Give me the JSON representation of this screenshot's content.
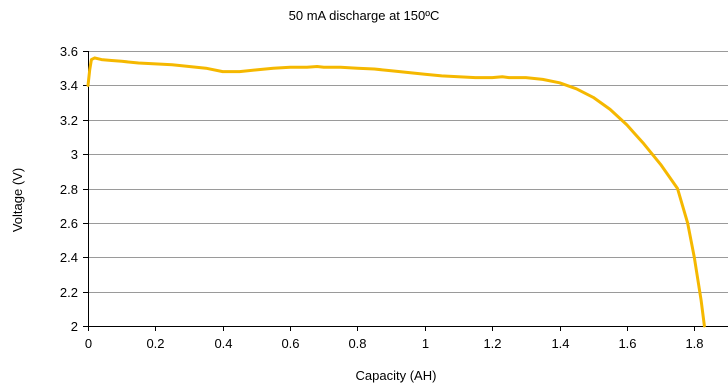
{
  "chart_data": {
    "type": "line",
    "title": "50 mA discharge at 150ºC",
    "xlabel": "Capacity (AH)",
    "ylabel": "Voltage (V)",
    "xlim": [
      0,
      1.9
    ],
    "ylim": [
      2,
      3.6
    ],
    "x_ticks": [
      0,
      0.2,
      0.4,
      0.6,
      0.8,
      1,
      1.2,
      1.4,
      1.6,
      1.8
    ],
    "x_tick_labels": [
      "0",
      "0.2",
      "0.4",
      "0.6",
      "0.8",
      "1",
      "1.2",
      "1.4",
      "1.6",
      "1.8"
    ],
    "y_ticks": [
      2,
      2.2,
      2.4,
      2.6,
      2.8,
      3,
      3.2,
      3.4,
      3.6
    ],
    "y_tick_labels": [
      "2",
      "2.2",
      "2.4",
      "2.6",
      "2.8",
      "3",
      "3.2",
      "3.4",
      "3.6"
    ],
    "grid": true,
    "legend": "none",
    "series": [
      {
        "color": "#F5B800",
        "x": [
          0,
          0.005,
          0.01,
          0.02,
          0.04,
          0.07,
          0.1,
          0.15,
          0.2,
          0.25,
          0.3,
          0.35,
          0.4,
          0.45,
          0.5,
          0.55,
          0.6,
          0.65,
          0.68,
          0.7,
          0.75,
          0.8,
          0.85,
          0.9,
          0.95,
          1,
          1.05,
          1.1,
          1.15,
          1.2,
          1.23,
          1.25,
          1.3,
          1.35,
          1.4,
          1.45,
          1.5,
          1.55,
          1.6,
          1.65,
          1.7,
          1.75,
          1.78,
          1.8,
          1.82,
          1.83
        ],
        "y": [
          3.4,
          3.49,
          3.55,
          3.56,
          3.55,
          3.545,
          3.54,
          3.53,
          3.525,
          3.52,
          3.51,
          3.5,
          3.48,
          3.48,
          3.49,
          3.5,
          3.505,
          3.505,
          3.51,
          3.505,
          3.505,
          3.5,
          3.495,
          3.485,
          3.475,
          3.465,
          3.455,
          3.45,
          3.445,
          3.445,
          3.45,
          3.445,
          3.445,
          3.435,
          3.415,
          3.38,
          3.33,
          3.26,
          3.17,
          3.06,
          2.94,
          2.8,
          2.6,
          2.4,
          2.15,
          2.0
        ]
      }
    ]
  }
}
